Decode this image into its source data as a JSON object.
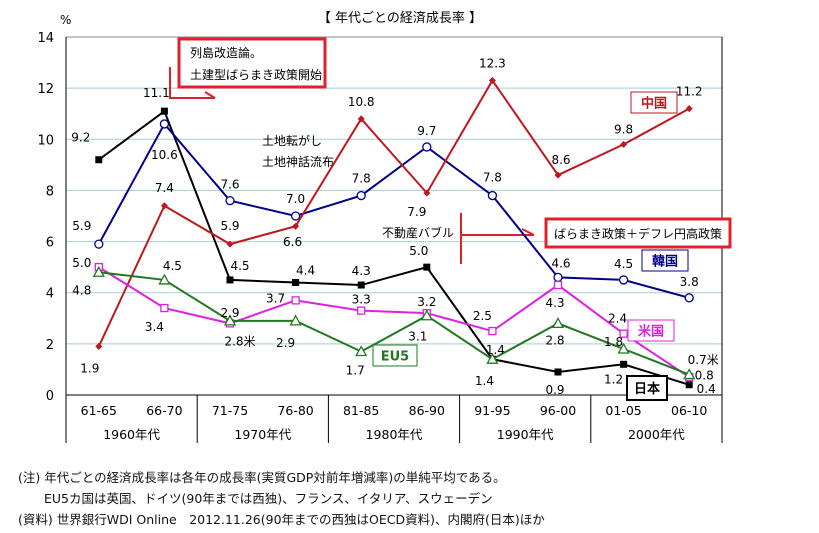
{
  "chart_data": {
    "type": "line",
    "title": "【 年代ごとの経済成長率 】",
    "ylabel": "%",
    "ylim": [
      0,
      14
    ],
    "yticks": [
      0,
      2,
      4,
      6,
      8,
      10,
      12,
      14
    ],
    "grid": true,
    "categories": [
      "61-65",
      "66-70",
      "71-75",
      "76-80",
      "81-85",
      "86-90",
      "91-95",
      "96-00",
      "01-05",
      "06-10"
    ],
    "decades": [
      "1960年代",
      "1970年代",
      "1980年代",
      "1990年代",
      "2000年代"
    ],
    "series": [
      {
        "name": "日本",
        "color": "#000000",
        "marker": "square-filled",
        "values": [
          9.2,
          11.1,
          4.5,
          4.4,
          4.3,
          5.0,
          1.4,
          0.9,
          1.2,
          0.4
        ],
        "labels": [
          "9.2",
          "11.1",
          "4.5",
          "4.4",
          "4.3",
          "5.0",
          "1.4",
          "0.9",
          "1.2",
          "0.4"
        ]
      },
      {
        "name": "韓国",
        "color": "#00008b",
        "marker": "circle-open",
        "values": [
          5.9,
          10.6,
          7.6,
          7.0,
          7.8,
          9.7,
          7.8,
          4.6,
          4.5,
          3.8
        ],
        "labels": [
          "5.9",
          "10.6",
          "7.6",
          "7.0",
          "7.8",
          "9.7",
          "7.8",
          "4.6",
          "4.5",
          "3.8"
        ]
      },
      {
        "name": "中国",
        "color": "#c0171c",
        "marker": "diamond-filled",
        "values": [
          1.9,
          7.4,
          5.9,
          6.6,
          10.8,
          7.9,
          12.3,
          8.6,
          9.8,
          11.2
        ],
        "labels": [
          "1.9",
          "7.4",
          "5.9",
          "6.6",
          "10.8",
          "7.9",
          "12.3",
          "8.6",
          "9.8",
          "11.2"
        ]
      },
      {
        "name": "米国",
        "color": "#e020e0",
        "marker": "square-open",
        "values": [
          5.0,
          3.4,
          2.8,
          3.7,
          3.3,
          3.2,
          2.5,
          4.3,
          2.4,
          0.7
        ],
        "labels": [
          "5.0",
          "3.4",
          "2.8米",
          "3.7",
          "3.3",
          "3.2",
          "2.5",
          "4.3",
          "2.4",
          "0.7米"
        ]
      },
      {
        "name": "EU5",
        "color": "#1f7a1f",
        "marker": "triangle-open",
        "values": [
          4.8,
          4.5,
          2.9,
          2.9,
          1.7,
          3.1,
          1.4,
          2.8,
          1.8,
          0.8
        ],
        "labels": [
          "4.8",
          "4.5",
          "2.9",
          "2.9",
          "1.7",
          "3.1",
          "1.4",
          "2.8",
          "1.8",
          "0.8"
        ]
      }
    ],
    "annotations": {
      "box1_line1": "列島改造論。",
      "box1_line2": "土建型ばらまき政策開始",
      "land1": "土地転がし",
      "land2": "土地神話流布",
      "bubble": "不動産バブル",
      "box2": "ばらまき政策＋デフレ円高政策"
    }
  },
  "notes": [
    "(注) 年代ごとの経済成長率は各年の成長率(実質GDP対前年増減率)の単純平均である。",
    "EU5カ国は英国、ドイツ(90年までは西独)、フランス、イタリア、スウェーデン",
    "(資料) 世界銀行WDI Online　2012.11.26(90年までの西独はOECD資料)、内閣府(日本)ほか"
  ]
}
